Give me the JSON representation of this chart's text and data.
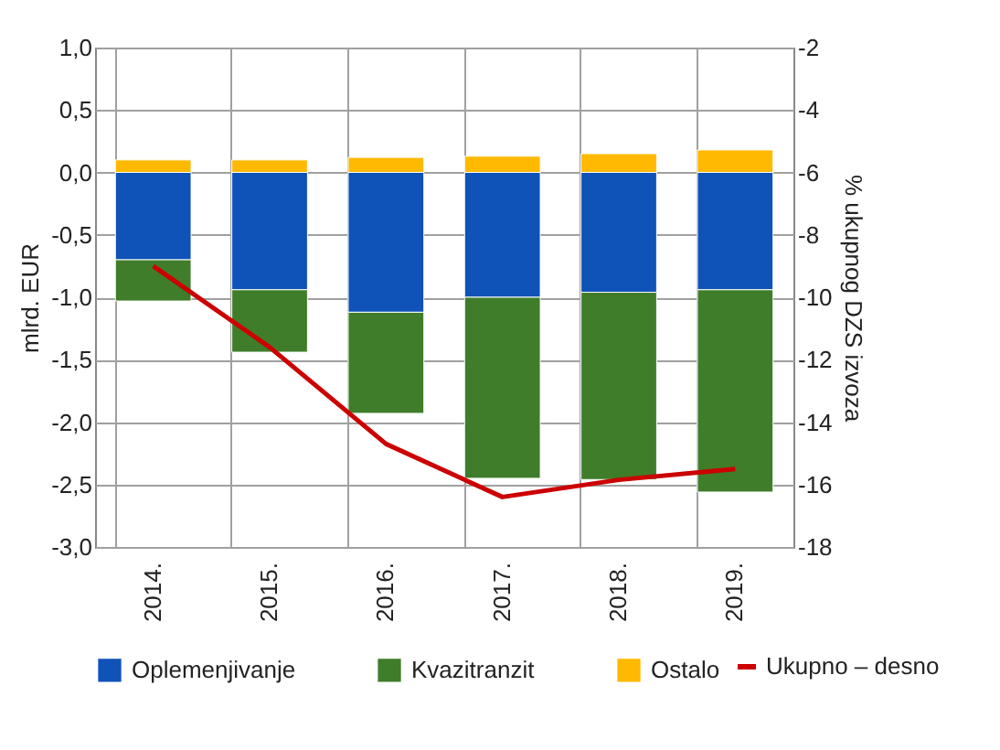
{
  "chart_data": {
    "type": "bar",
    "stacked": true,
    "categories": [
      "2014.",
      "2015.",
      "2016.",
      "2017.",
      "2018.",
      "2019."
    ],
    "ylabel": "mlrd. EUR",
    "y2label": "% ukupnog DZS izvoza",
    "ylim": [
      -3,
      1
    ],
    "yticks": [
      {
        "value": -3,
        "label": "-3,0"
      },
      {
        "value": -2.5,
        "label": "-2,5"
      },
      {
        "value": -2,
        "label": "-2,0"
      },
      {
        "value": -1.5,
        "label": "-1,5"
      },
      {
        "value": -1,
        "label": "-1,0"
      },
      {
        "value": -0.5,
        "label": "-0,5"
      },
      {
        "value": 0,
        "label": "0,0"
      },
      {
        "value": 0.5,
        "label": "0,5"
      },
      {
        "value": 1,
        "label": "1,0"
      }
    ],
    "y2lim": [
      -18,
      -2
    ],
    "y2ticks": [
      -18,
      -16,
      -14,
      -12,
      -10,
      -8,
      -6,
      -4,
      -2
    ],
    "grid": true,
    "legend": "bottom",
    "series": [
      {
        "name": "Oplemenjivanje",
        "color": "#0f52b8",
        "values": [
          -0.7,
          -0.94,
          -1.12,
          -1.0,
          -0.96,
          -0.94
        ]
      },
      {
        "name": "Kvazitranzit",
        "color": "#3f7d2a",
        "values": [
          -0.33,
          -0.5,
          -0.81,
          -1.45,
          -1.5,
          -1.62
        ]
      },
      {
        "name": "Ostalo",
        "color": "#ffb900",
        "values": [
          0.1,
          0.1,
          0.12,
          0.13,
          0.15,
          0.18
        ]
      },
      {
        "name": "Ukupno – desno",
        "type": "line",
        "axis": "y2",
        "color": "#cc0000",
        "values": [
          -9.0,
          -11.6,
          -14.7,
          -16.4,
          -15.85,
          -15.5
        ]
      }
    ]
  }
}
